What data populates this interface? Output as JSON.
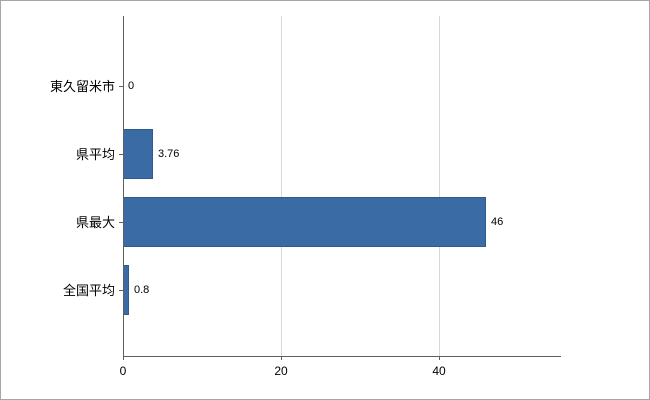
{
  "chart_data": {
    "type": "bar",
    "orientation": "horizontal",
    "title": "",
    "categories": [
      "東久留米市",
      "県平均",
      "県最大",
      "全国平均"
    ],
    "values": [
      0,
      3.76,
      46,
      0.8
    ],
    "value_labels": [
      "0",
      "3.76",
      "46",
      "0.8"
    ],
    "xlabel": "",
    "ylabel": "",
    "xlim": [
      0,
      55
    ],
    "xticks": [
      0,
      20,
      40
    ],
    "xtick_labels": [
      "0",
      "20",
      "40"
    ],
    "grid": "vertical",
    "legend": "none",
    "colors": {
      "bar_fill": "#3b6ba5",
      "bar_border": "#2f5a8c",
      "gridline": "#d9d9d9",
      "axis": "#5f5f5f",
      "text": "#000000",
      "background": "#ffffff",
      "frame_border": "#a6a6a6"
    }
  }
}
